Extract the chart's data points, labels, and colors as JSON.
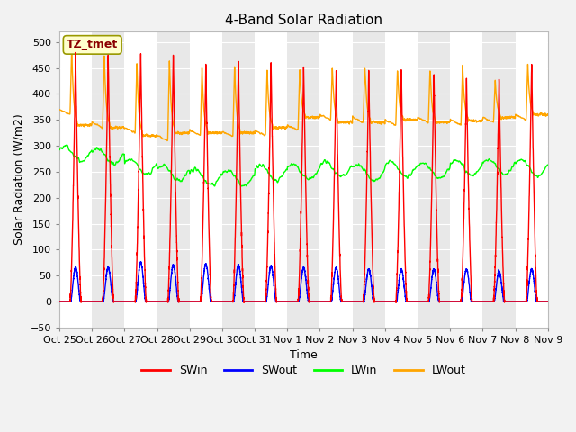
{
  "title": "4-Band Solar Radiation",
  "xlabel": "Time",
  "ylabel": "Solar Radiation (W/m2)",
  "ylim": [
    -50,
    520
  ],
  "yticks": [
    -50,
    0,
    50,
    100,
    150,
    200,
    250,
    300,
    350,
    400,
    450,
    500
  ],
  "xtick_labels": [
    "Oct 25",
    "Oct 26",
    "Oct 27",
    "Oct 28",
    "Oct 29",
    "Oct 30",
    "Oct 31",
    "Nov 1",
    "Nov 2",
    "Nov 3",
    "Nov 4",
    "Nov 5",
    "Nov 6",
    "Nov 7",
    "Nov 8",
    "Nov 9"
  ],
  "annotation_text": "TZ_tmet",
  "annotation_box_color": "#FFFFCC",
  "annotation_box_edge": "#999900",
  "colors": {
    "SWin": "#FF0000",
    "SWout": "#0000FF",
    "LWin": "#00FF00",
    "LWout": "#FFA500"
  },
  "background_color": "#E8E8E8",
  "grid_color": "#FFFFFF",
  "n_days": 15,
  "swin_peaks": [
    480,
    480,
    480,
    480,
    460,
    460,
    460,
    455,
    450,
    445,
    450,
    440,
    430,
    430,
    460
  ],
  "swout_peaks": [
    65,
    65,
    75,
    70,
    72,
    70,
    68,
    65,
    65,
    62,
    62,
    62,
    62,
    58,
    62
  ],
  "lwin_baseline_start": [
    285,
    280,
    260,
    248,
    240,
    238,
    248,
    250,
    255,
    248,
    255,
    252,
    258,
    260,
    258
  ],
  "lwin_noise_scale": 8,
  "lwout_night": [
    370,
    345,
    335,
    320,
    330,
    328,
    330,
    340,
    360,
    355,
    350,
    355,
    350,
    355,
    360
  ],
  "lwout_peak_extra": [
    120,
    135,
    130,
    150,
    125,
    130,
    120,
    110,
    95,
    100,
    100,
    95,
    110,
    75,
    100
  ],
  "lwout_decay_end": [
    340,
    335,
    320,
    325,
    325,
    325,
    335,
    355,
    345,
    345,
    350,
    345,
    348,
    355,
    360
  ]
}
